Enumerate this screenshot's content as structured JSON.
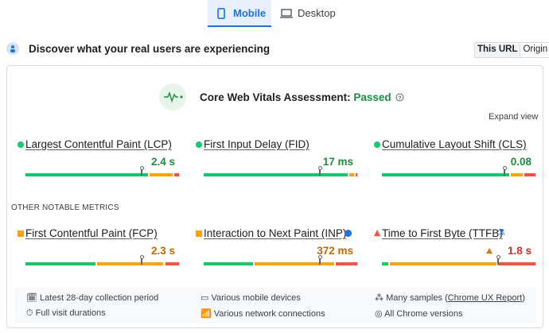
{
  "tabs": [
    "Mobile",
    "Desktop"
  ],
  "header": {
    "title": "Discover what your real users are experiencing",
    "toggle": [
      "This URL",
      "Origin"
    ]
  },
  "assessment": {
    "label": "Core Web Vitals Assessment:",
    "status": "Passed",
    "expand": "Expand view"
  },
  "core_metrics": [
    {
      "name": "Largest Contentful Paint (LCP)",
      "value": "2.4 s"
    },
    {
      "name": "First Input Delay (FID)",
      "value": "17 ms"
    },
    {
      "name": "Cumulative Layout Shift (CLS)",
      "value": "0.08"
    }
  ],
  "section_title": "OTHER NOTABLE METRICS",
  "other_metrics": [
    {
      "name": "First Contentful Paint (FCP)",
      "value": "2.3 s"
    },
    {
      "name": "Interaction to Next Paint (INP)",
      "value": "372 ms"
    },
    {
      "name": "Time to First Byte (TTFB)",
      "value": "1.8 s"
    }
  ],
  "footer": {
    "row1": [
      "Latest 28-day collection period",
      "Various mobile devices"
    ],
    "samples": {
      "prefix": "Many samples (",
      "link": "Chrome UX Report",
      "suffix": ")"
    },
    "row2": [
      "Full visit durations",
      "Various network connections",
      "All Chrome versions"
    ]
  }
}
